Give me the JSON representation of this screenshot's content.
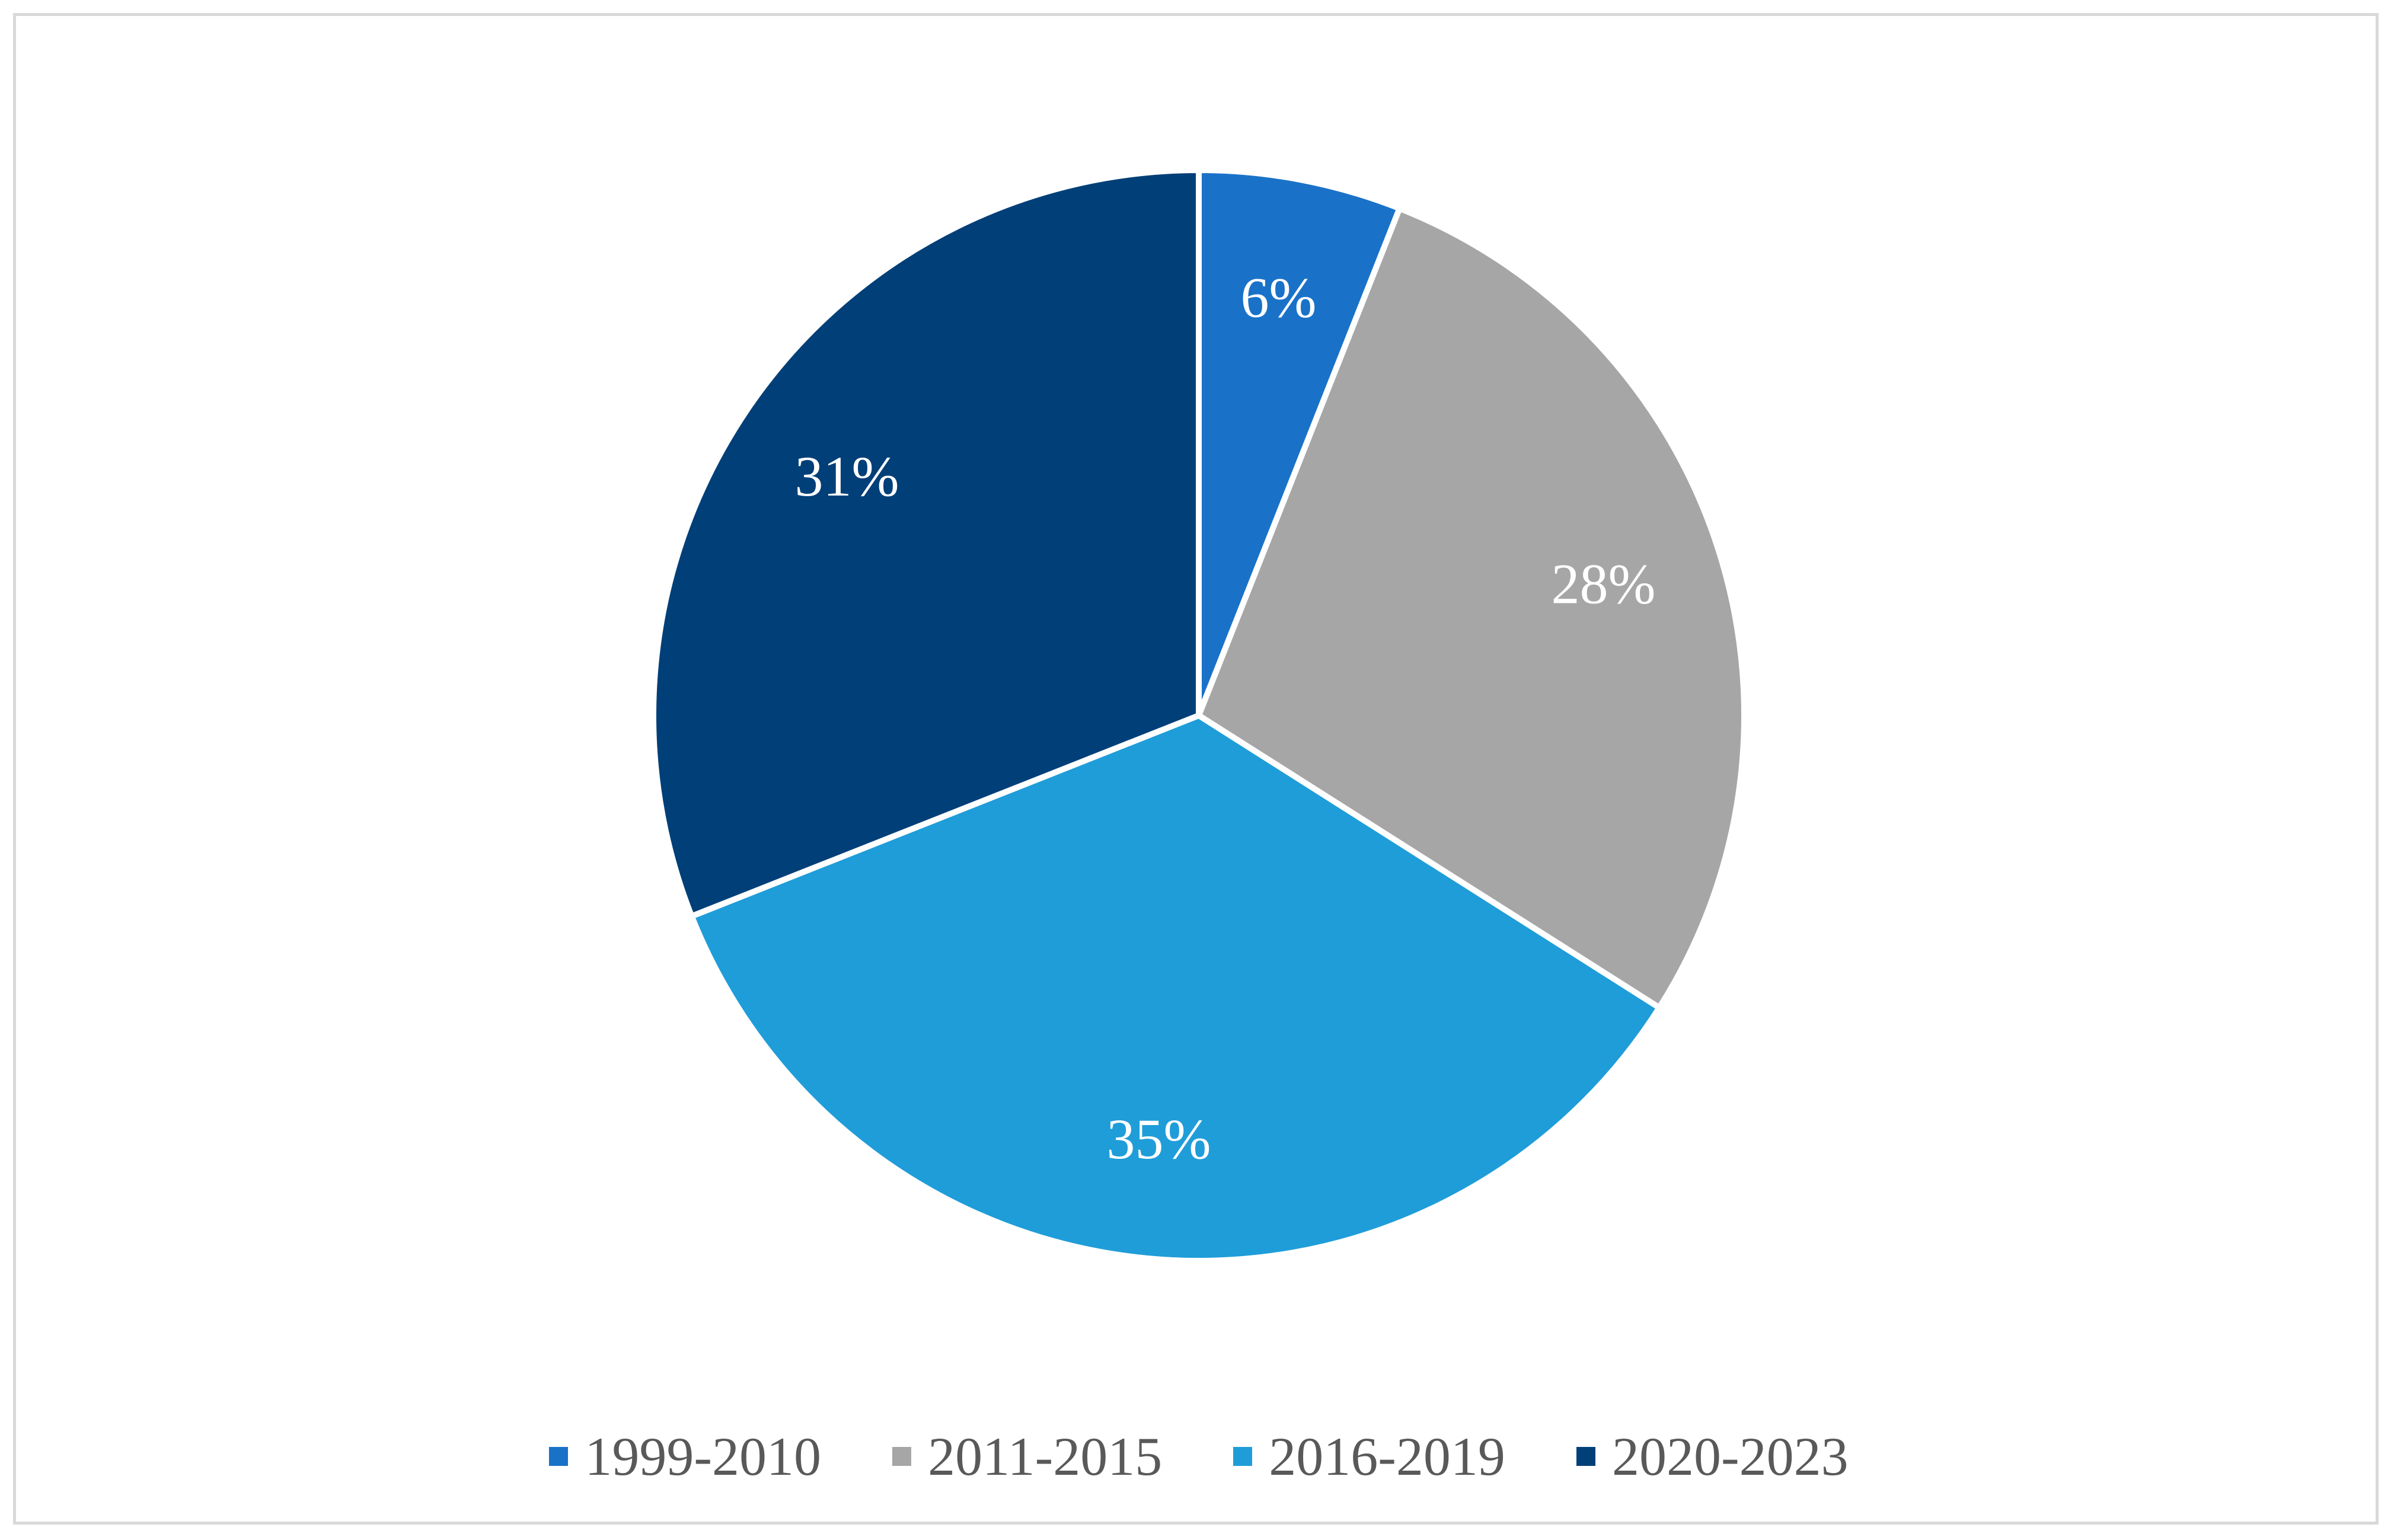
{
  "chart_data": {
    "type": "pie",
    "title": "",
    "categories": [
      "1999-2010",
      "2011-2015",
      "2016-2019",
      "2020-2023"
    ],
    "values": [
      6,
      28,
      35,
      31
    ],
    "labels": [
      "6%",
      "28%",
      "35%",
      "31%"
    ],
    "colors": [
      "#1a72c8",
      "#a6a6a6",
      "#1f9dd9",
      "#003f78"
    ],
    "legend_position": "bottom",
    "start_angle": "12 o'clock, clockwise"
  }
}
